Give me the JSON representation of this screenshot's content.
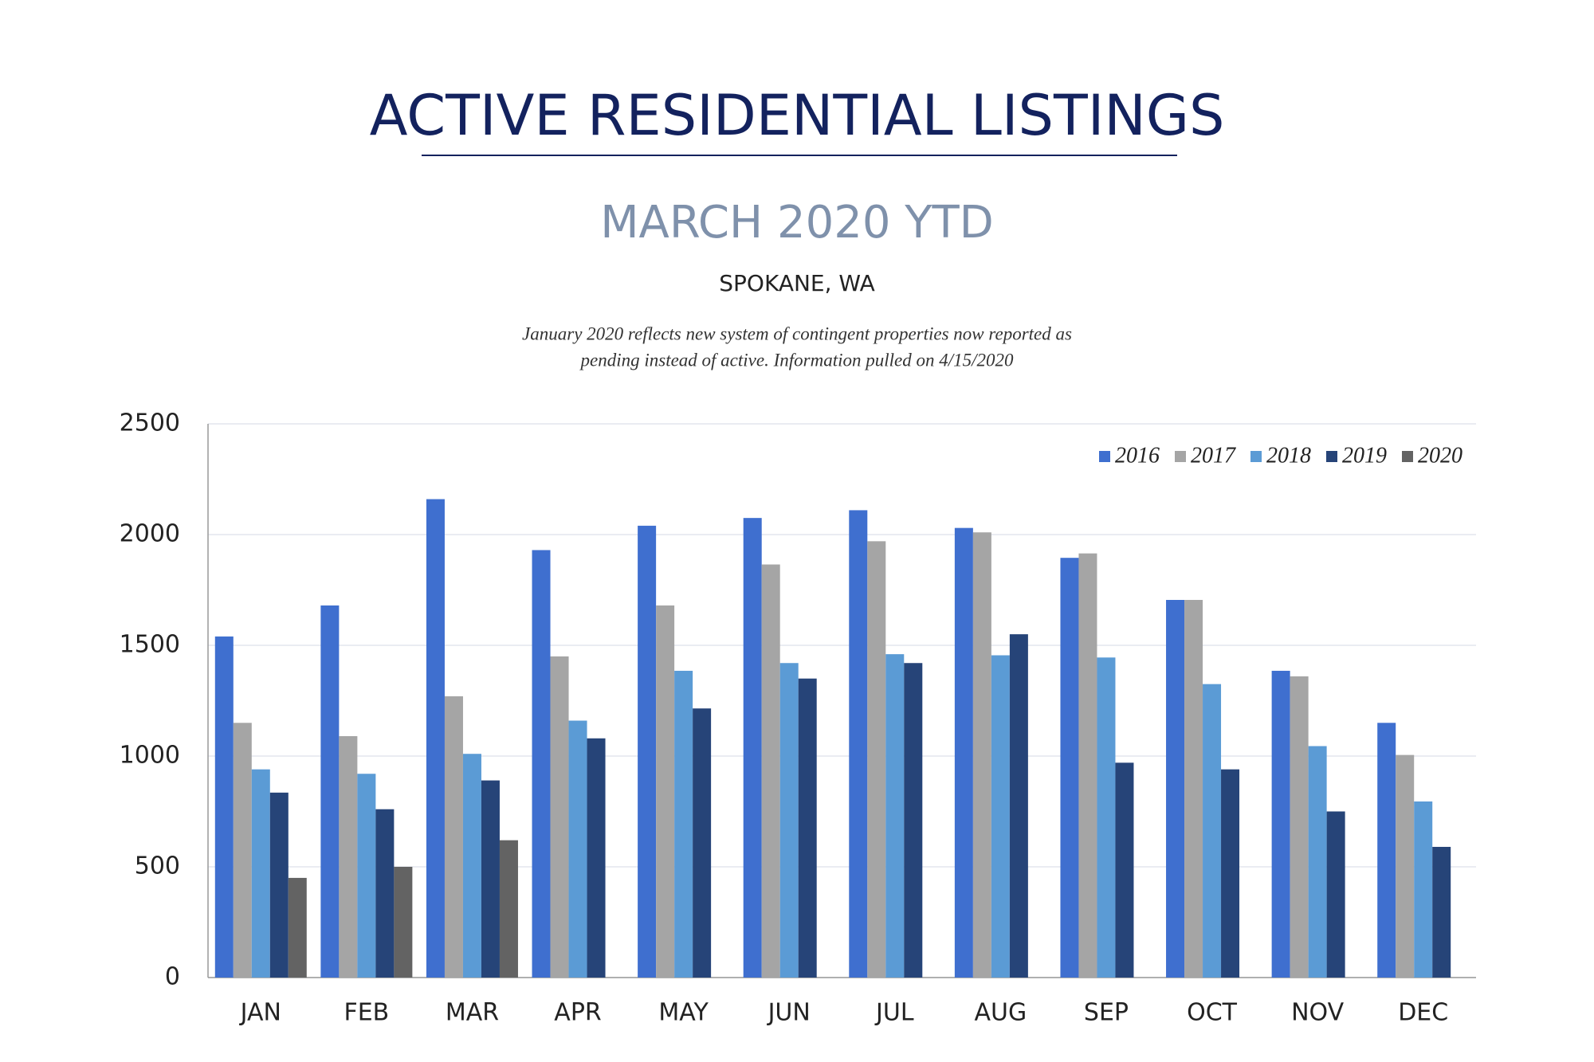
{
  "chart_data": {
    "type": "bar",
    "title": "ACTIVE RESIDENTIAL LISTINGS",
    "subtitle": "MARCH 2020 YTD",
    "location": "SPOKANE, WA",
    "note": [
      "January 2020 reflects new system of contingent properties now reported as",
      "pending instead of active.  Information pulled on 4/15/2020"
    ],
    "categories": [
      "JAN",
      "FEB",
      "MAR",
      "APR",
      "MAY",
      "JUN",
      "JUL",
      "AUG",
      "SEP",
      "OCT",
      "NOV",
      "DEC"
    ],
    "series": [
      {
        "name": "2016",
        "color": "#3f6fcf",
        "values": [
          1540,
          1680,
          2160,
          1930,
          2040,
          2075,
          2110,
          2030,
          1895,
          1705,
          1385,
          1150
        ]
      },
      {
        "name": "2017",
        "color": "#a5a5a5",
        "values": [
          1150,
          1090,
          1270,
          1450,
          1680,
          1865,
          1970,
          2010,
          1915,
          1705,
          1360,
          1005
        ]
      },
      {
        "name": "2018",
        "color": "#5b9bd5",
        "values": [
          940,
          920,
          1010,
          1160,
          1385,
          1420,
          1460,
          1455,
          1445,
          1325,
          1045,
          795
        ]
      },
      {
        "name": "2019",
        "color": "#264478",
        "values": [
          835,
          760,
          890,
          1080,
          1215,
          1350,
          1420,
          1550,
          970,
          940,
          750,
          590
        ]
      },
      {
        "name": "2020",
        "color": "#636363",
        "values": [
          450,
          500,
          620,
          null,
          null,
          null,
          null,
          null,
          null,
          null,
          null,
          null
        ]
      }
    ],
    "ylim": [
      0,
      2500
    ],
    "yticks": [
      0,
      500,
      1000,
      1500,
      2000,
      2500
    ],
    "grid": true,
    "legend": "top-right"
  }
}
